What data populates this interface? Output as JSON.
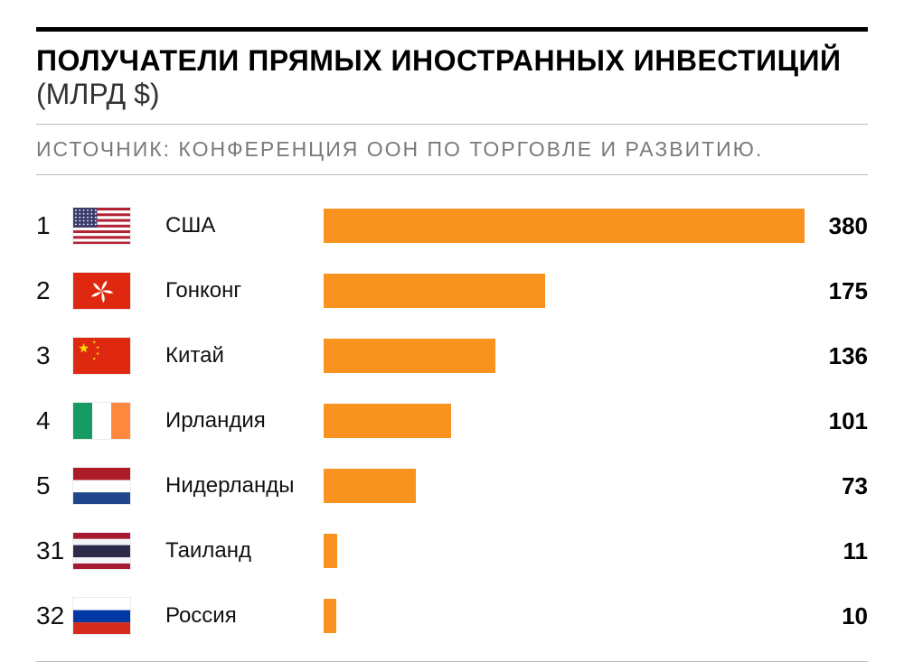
{
  "chart": {
    "type": "bar",
    "title_main": "ПОЛУЧАТЕЛИ ПРЯМЫХ ИНОСТРАННЫХ ИНВЕСТИЦИЙ",
    "title_unit": "(МЛРД $)",
    "source": "ИСТОЧНИК: КОНФЕРЕНЦИЯ ООН ПО ТОРГОВЛЕ И РАЗВИТИЮ.",
    "max_value": 380,
    "bar_color": "#f7931e",
    "background_color": "#ffffff",
    "border_top_color": "#000000",
    "divider_color": "#bbbbbb",
    "title_fontsize": 32,
    "source_fontsize": 23,
    "label_fontsize": 24,
    "value_fontsize": 26,
    "rank_fontsize": 28,
    "rows": [
      {
        "rank": "1",
        "flag": "us",
        "country": "США",
        "value": 380
      },
      {
        "rank": "2",
        "flag": "hk",
        "country": "Гонконг",
        "value": 175
      },
      {
        "rank": "3",
        "flag": "cn",
        "country": "Китай",
        "value": 136
      },
      {
        "rank": "4",
        "flag": "ie",
        "country": "Ирландия",
        "value": 101
      },
      {
        "rank": "5",
        "flag": "nl",
        "country": "Нидерланды",
        "value": 73
      },
      {
        "rank": "31",
        "flag": "th",
        "country": "Таиланд",
        "value": 11
      },
      {
        "rank": "32",
        "flag": "ru",
        "country": "Россия",
        "value": 10
      }
    ]
  }
}
